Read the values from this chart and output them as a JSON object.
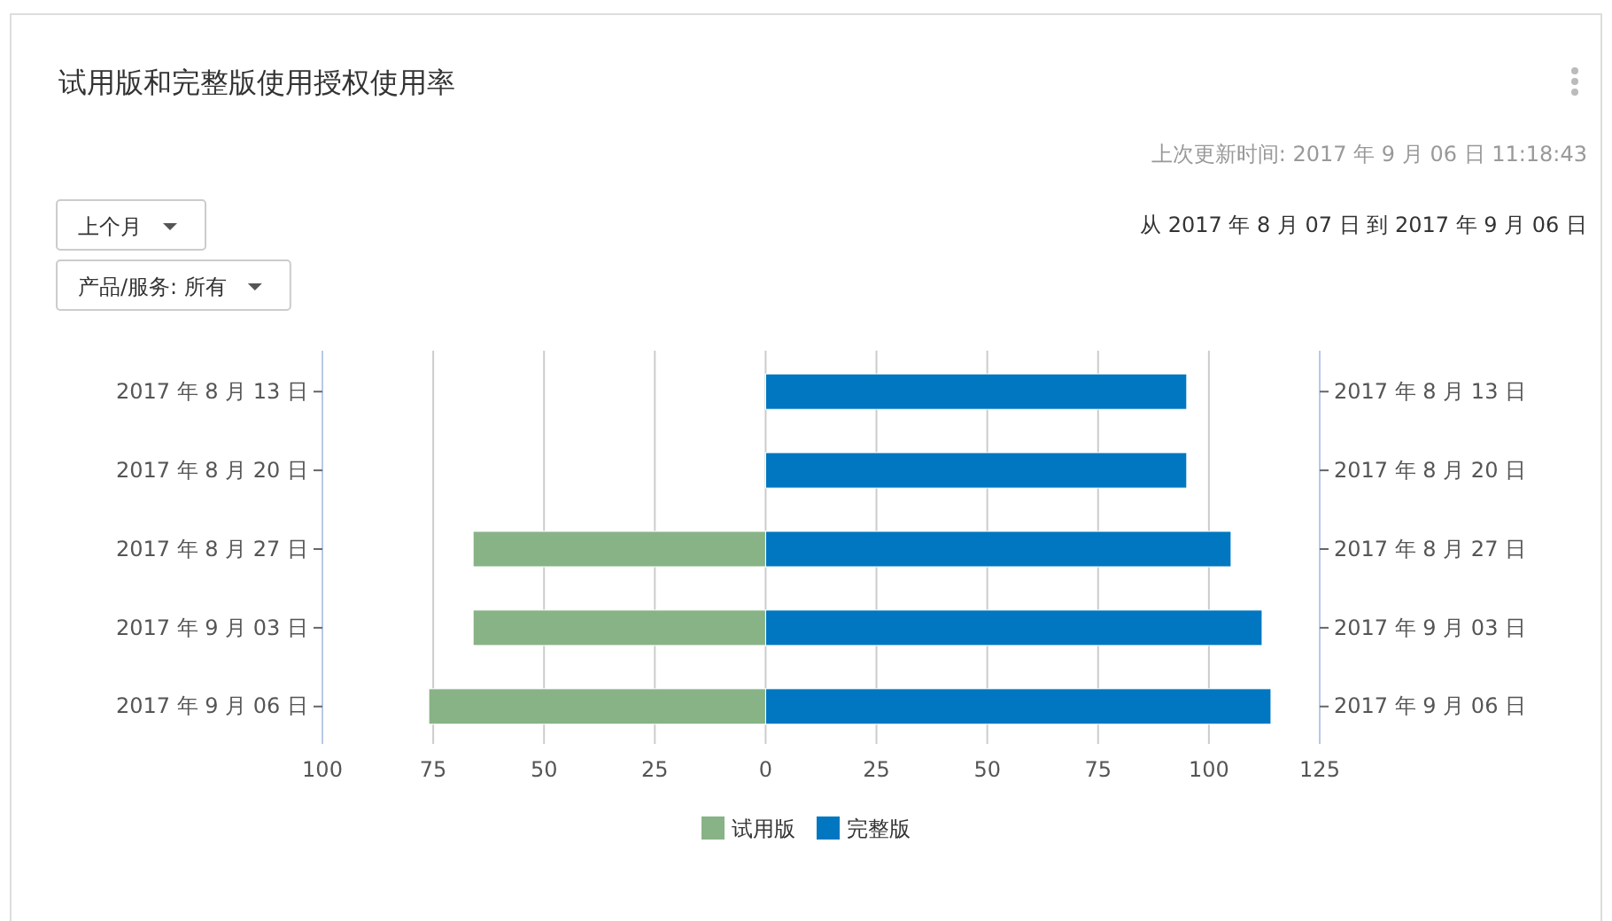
{
  "chart_data": {
    "type": "bar",
    "orientation": "horizontal",
    "title": "试用版和完整版使用授权使用率",
    "subtitle": "从 2017 年 8 月 07 日 到 2017 年 9 月 06 日",
    "annotations": [
      "上次更新时间: 2017 年 9 月 06 日 11:18:43",
      "上个月",
      "产品/服务: 所有"
    ],
    "categories": [
      "2017 年 8 月 13 日",
      "2017 年 8 月 20 日",
      "2017 年 8 月 27 日",
      "2017 年 9 月 03 日",
      "2017 年 9 月 06 日"
    ],
    "series": [
      {
        "name": "试用版",
        "color": "#88b386",
        "values": [
          null,
          null,
          -66,
          -66,
          -76
        ]
      },
      {
        "name": "完整版",
        "color": "#0077c0",
        "values": [
          95,
          95,
          105,
          112,
          114
        ]
      }
    ],
    "xlim": [
      -100,
      125
    ],
    "xticks": [
      {
        "value": -100,
        "label": "100"
      },
      {
        "value": -75,
        "label": "75"
      },
      {
        "value": -50,
        "label": "50"
      },
      {
        "value": -25,
        "label": "25"
      },
      0,
      25,
      50,
      75,
      100,
      125
    ],
    "stacked": true,
    "grid": "x",
    "legend": "bottom"
  }
}
